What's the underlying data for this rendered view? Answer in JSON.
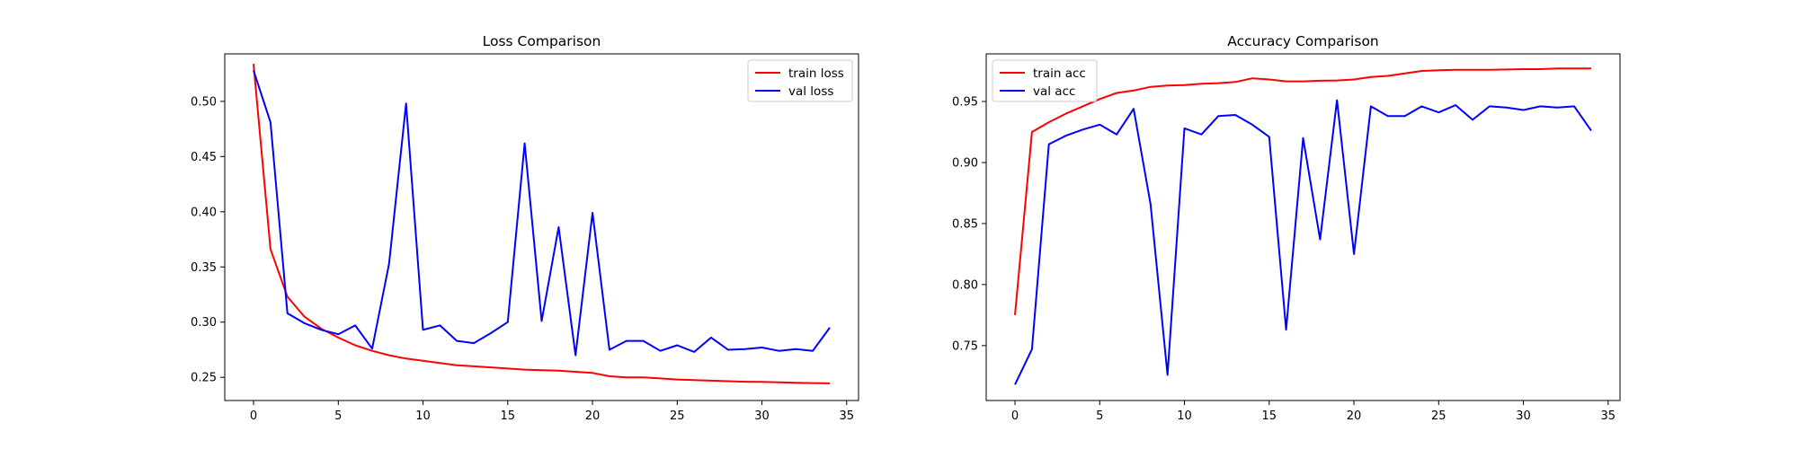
{
  "chart_data": [
    {
      "type": "line",
      "title": "Loss Comparison",
      "xlabel": "",
      "ylabel": "",
      "xlim": [
        -1.7,
        35.7
      ],
      "ylim": [
        0.229,
        0.543
      ],
      "xticks": [
        0,
        5,
        10,
        15,
        20,
        25,
        30,
        35
      ],
      "yticks": [
        0.25,
        0.3,
        0.35,
        0.4,
        0.45,
        0.5
      ],
      "ytick_labels": [
        "0.25",
        "0.30",
        "0.35",
        "0.40",
        "0.45",
        "0.50"
      ],
      "legend_position": "top-right",
      "grid": false,
      "x": [
        0,
        1,
        2,
        3,
        4,
        5,
        6,
        7,
        8,
        9,
        10,
        11,
        12,
        13,
        14,
        15,
        16,
        17,
        18,
        19,
        20,
        21,
        22,
        23,
        24,
        25,
        26,
        27,
        28,
        29,
        30,
        31,
        32,
        33,
        34
      ],
      "series": [
        {
          "name": "train loss",
          "color": "#ff0000",
          "values": [
            0.534,
            0.366,
            0.323,
            0.305,
            0.294,
            0.286,
            0.279,
            0.274,
            0.27,
            0.267,
            0.265,
            0.263,
            0.261,
            0.26,
            0.259,
            0.258,
            0.257,
            0.2565,
            0.256,
            0.255,
            0.254,
            0.251,
            0.25,
            0.25,
            0.249,
            0.248,
            0.2475,
            0.247,
            0.2465,
            0.246,
            0.2458,
            0.2455,
            0.245,
            0.2448,
            0.2445
          ]
        },
        {
          "name": "val loss",
          "color": "#0000ff",
          "values": [
            0.528,
            0.481,
            0.308,
            0.299,
            0.293,
            0.289,
            0.297,
            0.276,
            0.353,
            0.498,
            0.293,
            0.297,
            0.283,
            0.281,
            0.29,
            0.3,
            0.462,
            0.301,
            0.386,
            0.27,
            0.399,
            0.275,
            0.283,
            0.283,
            0.274,
            0.279,
            0.273,
            0.286,
            0.275,
            0.2755,
            0.277,
            0.274,
            0.2755,
            0.274,
            0.295
          ]
        }
      ]
    },
    {
      "type": "line",
      "title": "Accuracy Comparison",
      "xlabel": "",
      "ylabel": "",
      "xlim": [
        -1.7,
        35.7
      ],
      "ylim": [
        0.705,
        0.989
      ],
      "xticks": [
        0,
        5,
        10,
        15,
        20,
        25,
        30,
        35
      ],
      "yticks": [
        0.75,
        0.8,
        0.85,
        0.9,
        0.95
      ],
      "ytick_labels": [
        "0.75",
        "0.80",
        "0.85",
        "0.90",
        "0.95"
      ],
      "legend_position": "top-left",
      "grid": false,
      "x": [
        0,
        1,
        2,
        3,
        4,
        5,
        6,
        7,
        8,
        9,
        10,
        11,
        12,
        13,
        14,
        15,
        16,
        17,
        18,
        19,
        20,
        21,
        22,
        23,
        24,
        25,
        26,
        27,
        28,
        29,
        30,
        31,
        32,
        33,
        34
      ],
      "series": [
        {
          "name": "train acc",
          "color": "#ff0000",
          "values": [
            0.775,
            0.925,
            0.933,
            0.94,
            0.946,
            0.952,
            0.957,
            0.959,
            0.962,
            0.963,
            0.9635,
            0.9645,
            0.965,
            0.966,
            0.969,
            0.968,
            0.9665,
            0.9665,
            0.967,
            0.9672,
            0.968,
            0.97,
            0.971,
            0.973,
            0.975,
            0.9755,
            0.976,
            0.976,
            0.976,
            0.9762,
            0.9765,
            0.9765,
            0.977,
            0.977,
            0.977
          ]
        },
        {
          "name": "val acc",
          "color": "#0000ff",
          "values": [
            0.718,
            0.747,
            0.915,
            0.922,
            0.927,
            0.931,
            0.923,
            0.944,
            0.866,
            0.726,
            0.928,
            0.923,
            0.938,
            0.939,
            0.931,
            0.921,
            0.763,
            0.92,
            0.837,
            0.951,
            0.825,
            0.946,
            0.938,
            0.938,
            0.946,
            0.941,
            0.947,
            0.935,
            0.946,
            0.945,
            0.943,
            0.946,
            0.945,
            0.946,
            0.926
          ]
        }
      ]
    }
  ]
}
